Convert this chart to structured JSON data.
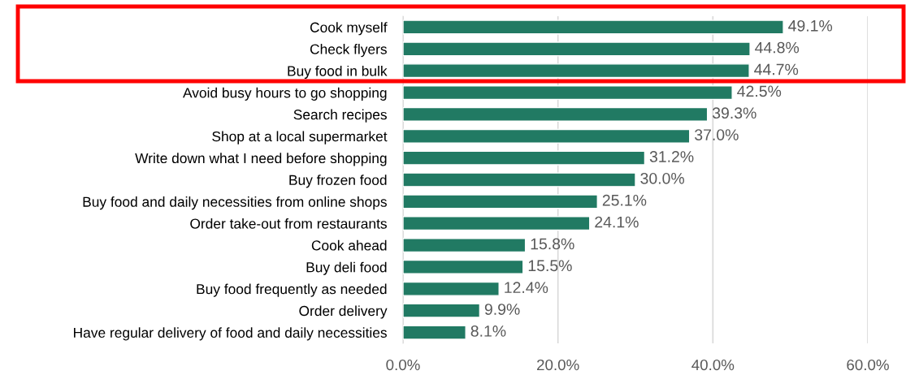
{
  "chart_data": {
    "type": "bar",
    "orientation": "horizontal",
    "categories": [
      "Cook myself",
      "Check flyers",
      "Buy food in bulk",
      "Avoid busy hours to go shopping",
      "Search recipes",
      "Shop at a local supermarket",
      "Write down what I need before shopping",
      "Buy frozen food",
      "Buy food and daily necessities from online shops",
      "Order take-out from restaurants",
      "Cook ahead",
      "Buy deli food",
      "Buy food frequently as needed",
      "Order delivery",
      "Have regular delivery of food and daily necessities"
    ],
    "values": [
      49.1,
      44.8,
      44.7,
      42.5,
      39.3,
      37.0,
      31.2,
      30.0,
      25.1,
      24.1,
      15.8,
      15.5,
      12.4,
      9.9,
      8.1
    ],
    "value_labels": [
      "49.1%",
      "44.8%",
      "44.7%",
      "42.5%",
      "39.3%",
      "37.0%",
      "31.2%",
      "30.0%",
      "25.1%",
      "24.1%",
      "15.8%",
      "15.5%",
      "12.4%",
      "9.9%",
      "8.1%"
    ],
    "color": "#217a63",
    "xlim": [
      0,
      60
    ],
    "xticks": [
      {
        "value": 0,
        "label": "0.0%"
      },
      {
        "value": 20,
        "label": "20.0%"
      },
      {
        "value": 40,
        "label": "40.0%"
      },
      {
        "value": 60,
        "label": "60.0%"
      }
    ],
    "grid": "x"
  }
}
